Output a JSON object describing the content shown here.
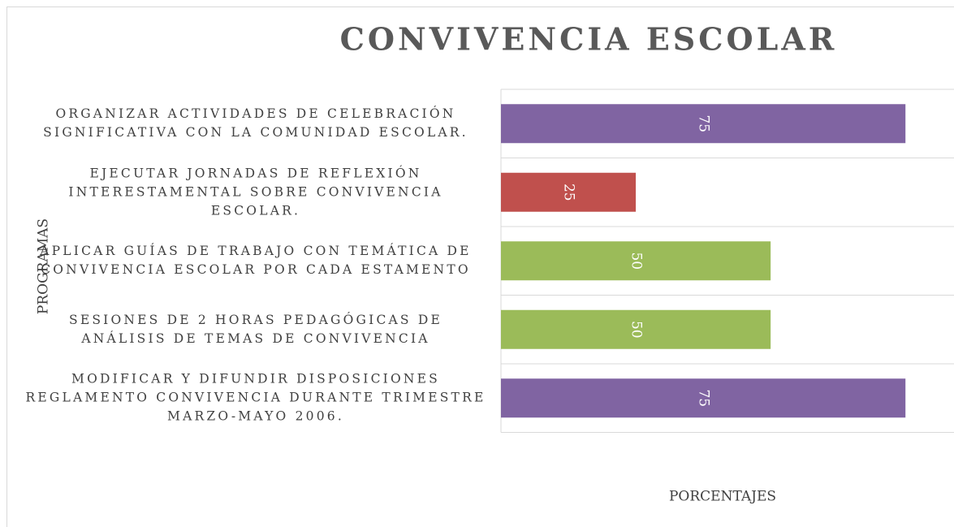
{
  "chart_data": {
    "type": "barh",
    "title": "CONVIVENCIA ESCOLAR",
    "y_label": "PROGRAMAS",
    "x_label": "PORCENTAJES",
    "categories": [
      "ORGANIZAR ACTIVIDADES DE CELEBRACIÓN SIGNIFICATIVA CON LA COMUNIDAD ESCOLAR.",
      "EJECUTAR JORNADAS DE REFLEXIÓN INTERESTAMENTAL SOBRE CONVIVENCIA ESCOLAR.",
      "APLICAR GUÍAS DE TRABAJO CON TEMÁTICA DE CONVIVENCIA ESCOLAR POR CADA ESTAMENTO",
      "SESIONES DE 2 HORAS PEDAGÓGICAS DE ANÁLISIS DE TEMAS DE CONVIVENCIA",
      "MODIFICAR Y DIFUNDIR DISPOSICIONES REGLAMENTO CONVIVENCIA DURANTE TRIMESTRE MARZO-MAYO 2006."
    ],
    "values": [
      75,
      25,
      50,
      50,
      75
    ],
    "colors": [
      "#8064a2",
      "#c0504d",
      "#9bbb59",
      "#9bbb59",
      "#8064a2"
    ],
    "xlim": [
      0,
      84
    ]
  }
}
